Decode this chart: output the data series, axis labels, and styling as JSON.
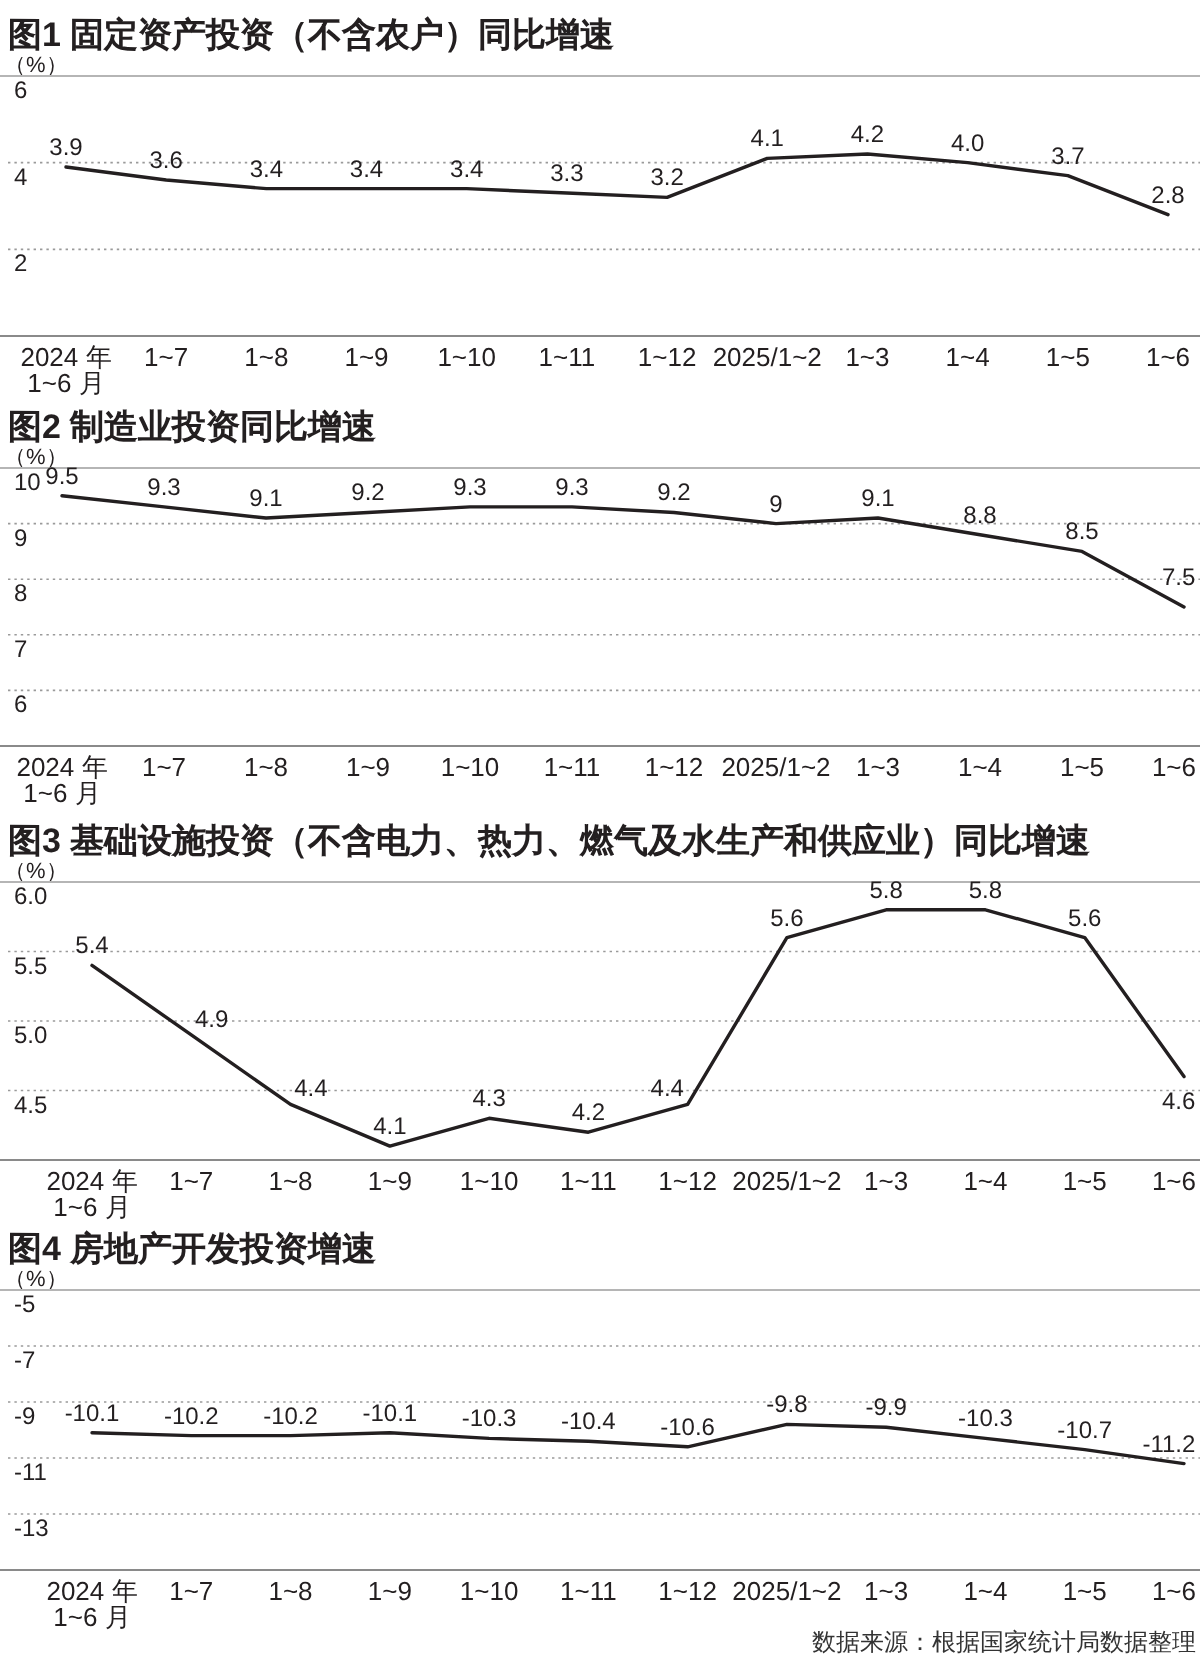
{
  "chart_data": [
    {
      "type": "line",
      "title": "图1 固定资产投资（不含农户）同比增速",
      "ylabel": "（%）",
      "categories": [
        "2024 年\n1~6 月",
        "1~7",
        "1~8",
        "1~9",
        "1~10",
        "1~11",
        "1~12",
        "2025/1~2",
        "1~3",
        "1~4",
        "1~5",
        "1~6"
      ],
      "values": [
        3.9,
        3.6,
        3.4,
        3.4,
        3.4,
        3.3,
        3.2,
        4.1,
        4.2,
        4.0,
        3.7,
        2.8
      ],
      "value_labels": [
        "3.9",
        "3.6",
        "3.4",
        "3.4",
        "3.4",
        "3.3",
        "3.2",
        "4.1",
        "4.2",
        "4.0",
        "3.7",
        "2.8"
      ],
      "color": "#231f20",
      "ylim": [
        0,
        6
      ],
      "yticks": [
        2,
        4,
        6
      ],
      "grid": "y"
    },
    {
      "type": "line",
      "title": "图2 制造业投资同比增速",
      "ylabel": "（%）",
      "categories": [
        "2024 年\n1~6 月",
        "1~7",
        "1~8",
        "1~9",
        "1~10",
        "1~11",
        "1~12",
        "2025/1~2",
        "1~3",
        "1~4",
        "1~5",
        "1~6"
      ],
      "values": [
        9.5,
        9.3,
        9.1,
        9.2,
        9.3,
        9.3,
        9.2,
        9,
        9.1,
        8.8,
        8.5,
        7.5
      ],
      "data_labels": true,
      "color": "#231f20",
      "ylim": [
        5,
        10
      ],
      "yticks": [
        6,
        7,
        8,
        9,
        10
      ],
      "grid": "y"
    },
    {
      "type": "line",
      "title": "图3 基础设施投资（不含电力、热力、燃气及水生产和供应业）同比增速",
      "ylabel": "（%）",
      "categories": [
        "2024 年\n1~6 月",
        "1~7",
        "1~8",
        "1~9",
        "1~10",
        "1~11",
        "1~12",
        "2025/1~2",
        "1~3",
        "1~4",
        "1~5",
        "1~6"
      ],
      "values": [
        5.4,
        4.9,
        4.4,
        4.1,
        4.3,
        4.2,
        4.4,
        5.6,
        5.8,
        5.8,
        5.6,
        4.6
      ],
      "data_labels": true,
      "color": "#231f20",
      "ylim": [
        4,
        6
      ],
      "yticks": [
        4.5,
        {
          "value": 5,
          "label": "5.0"
        },
        5.5,
        {
          "value": 6,
          "label": "6.0"
        }
      ],
      "grid": "y"
    },
    {
      "type": "line",
      "title": "图4 房地产开发投资增速",
      "ylabel": "（%）",
      "categories": [
        "2024 年\n1~6 月",
        "1~7",
        "1~8",
        "1~9",
        "1~10",
        "1~11",
        "1~12",
        "2025/1~2",
        "1~3",
        "1~4",
        "1~5",
        "1~6"
      ],
      "values": [
        -10.1,
        -10.2,
        -10.2,
        -10.1,
        -10.3,
        -10.4,
        -10.6,
        -9.8,
        -9.9,
        -10.3,
        -10.7,
        -11.2
      ],
      "data_labels": true,
      "color": "#231f20",
      "ylim": [
        -15,
        -5
      ],
      "yticks": [
        -13,
        -11,
        -9,
        -7,
        -5
      ],
      "grid": "y",
      "annotations": [
        "数据来源：根据国家统计局数据整理"
      ]
    }
  ]
}
